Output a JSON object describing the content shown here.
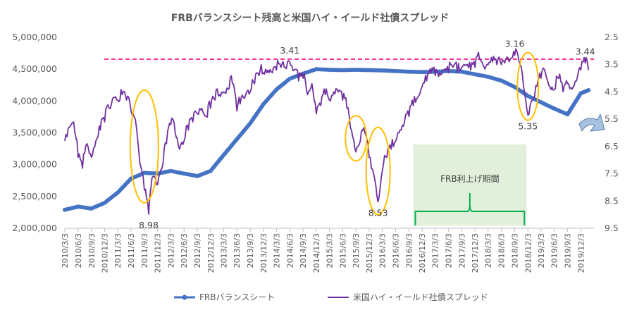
{
  "chart_data": {
    "type": "line",
    "title": "FRBバランスシート残高と米国ハイ・イールド社債スプレッド",
    "x_ticks": [
      "2010/3/3",
      "2010/6/3",
      "2010/9/3",
      "2010/12/3",
      "2011/3/3",
      "2011/6/3",
      "2011/9/3",
      "2011/12/3",
      "2012/3/3",
      "2012/6/3",
      "2012/9/3",
      "2012/12/3",
      "2013/3/3",
      "2013/6/3",
      "2013/9/3",
      "2013/12/3",
      "2014/3/3",
      "2014/6/3",
      "2014/9/3",
      "2014/12/3",
      "2015/3/3",
      "2015/6/3",
      "2015/9/3",
      "2015/12/3",
      "2016/3/3",
      "2016/6/3",
      "2016/9/3",
      "2016/12/3",
      "2017/3/3",
      "2017/6/3",
      "2017/9/3",
      "2017/12/3",
      "2018/3/3",
      "2018/6/3",
      "2018/9/3",
      "2018/12/3",
      "2019/3/3",
      "2019/6/3",
      "2019/9/3",
      "2019/12/3"
    ],
    "y_left": {
      "ticks": [
        "2,000,000",
        "2,500,000",
        "3,000,000",
        "3,500,000",
        "4,000,000",
        "4,500,000",
        "5,000,000"
      ],
      "min": 2000000,
      "max": 5000000
    },
    "y_right": {
      "ticks": [
        "2.5",
        "3.5",
        "4.5",
        "5.5",
        "6.5",
        "7.5",
        "8.5",
        "9.5"
      ],
      "min": 2.5,
      "max": 9.5,
      "inverted": true
    },
    "series": [
      {
        "name": "FRBバランスシート",
        "axis": "left",
        "color": "#4472C4",
        "points": [
          [
            "2010/3/3",
            2290000
          ],
          [
            "2010/6/3",
            2340000
          ],
          [
            "2010/9/3",
            2310000
          ],
          [
            "2010/12/3",
            2400000
          ],
          [
            "2011/3/3",
            2560000
          ],
          [
            "2011/6/3",
            2780000
          ],
          [
            "2011/9/3",
            2870000
          ],
          [
            "2011/12/3",
            2860000
          ],
          [
            "2012/3/3",
            2900000
          ],
          [
            "2012/6/3",
            2860000
          ],
          [
            "2012/9/3",
            2820000
          ],
          [
            "2012/12/3",
            2900000
          ],
          [
            "2013/3/3",
            3150000
          ],
          [
            "2013/6/3",
            3400000
          ],
          [
            "2013/9/3",
            3650000
          ],
          [
            "2013/12/3",
            3950000
          ],
          [
            "2014/3/3",
            4180000
          ],
          [
            "2014/6/3",
            4350000
          ],
          [
            "2014/9/3",
            4430000
          ],
          [
            "2014/12/3",
            4500000
          ],
          [
            "2015/3/3",
            4490000
          ],
          [
            "2015/6/3",
            4485000
          ],
          [
            "2015/9/3",
            4490000
          ],
          [
            "2015/12/3",
            4485000
          ],
          [
            "2016/3/3",
            4480000
          ],
          [
            "2016/6/3",
            4470000
          ],
          [
            "2016/9/3",
            4460000
          ],
          [
            "2016/12/3",
            4455000
          ],
          [
            "2017/3/3",
            4460000
          ],
          [
            "2017/6/3",
            4470000
          ],
          [
            "2017/9/3",
            4460000
          ],
          [
            "2017/12/3",
            4420000
          ],
          [
            "2018/3/3",
            4380000
          ],
          [
            "2018/6/3",
            4320000
          ],
          [
            "2018/9/3",
            4220000
          ],
          [
            "2018/12/3",
            4080000
          ],
          [
            "2019/3/3",
            3980000
          ],
          [
            "2019/6/3",
            3880000
          ],
          [
            "2019/9/3",
            3790000
          ],
          [
            "2019/12/3",
            4120000
          ],
          [
            "2020/1/25",
            4170000
          ]
        ]
      },
      {
        "name": "米国ハイ・イールド社債スプレッド",
        "axis": "right",
        "color": "#7030A0",
        "points": [
          [
            "2010/3/3",
            6.3
          ],
          [
            "2010/4/3",
            5.8
          ],
          [
            "2010/5/3",
            5.6
          ],
          [
            "2010/6/3",
            6.9
          ],
          [
            "2010/7/3",
            7.3
          ],
          [
            "2010/8/3",
            6.4
          ],
          [
            "2010/9/3",
            6.9
          ],
          [
            "2010/10/3",
            6.3
          ],
          [
            "2010/11/3",
            5.9
          ],
          [
            "2010/12/3",
            5.6
          ],
          [
            "2011/1/3",
            5.1
          ],
          [
            "2011/2/3",
            4.7
          ],
          [
            "2011/3/3",
            4.8
          ],
          [
            "2011/4/3",
            4.6
          ],
          [
            "2011/5/3",
            4.8
          ],
          [
            "2011/6/3",
            5.2
          ],
          [
            "2011/7/3",
            5.5
          ],
          [
            "2011/8/3",
            7.1
          ],
          [
            "2011/9/3",
            8.1
          ],
          [
            "2011/10/3",
            8.98
          ],
          [
            "2011/11/3",
            7.6
          ],
          [
            "2011/12/3",
            7.9
          ],
          [
            "2012/1/3",
            7.3
          ],
          [
            "2012/2/3",
            6.4
          ],
          [
            "2012/3/3",
            5.7
          ],
          [
            "2012/4/3",
            6.0
          ],
          [
            "2012/5/3",
            6.6
          ],
          [
            "2012/6/3",
            6.3
          ],
          [
            "2012/7/3",
            5.9
          ],
          [
            "2012/8/3",
            5.6
          ],
          [
            "2012/9/3",
            5.3
          ],
          [
            "2012/10/3",
            5.1
          ],
          [
            "2012/11/3",
            5.4
          ],
          [
            "2012/12/3",
            5.1
          ],
          [
            "2013/1/3",
            4.8
          ],
          [
            "2013/2/3",
            4.6
          ],
          [
            "2013/3/3",
            4.5
          ],
          [
            "2013/4/3",
            4.4
          ],
          [
            "2013/5/3",
            4.2
          ],
          [
            "2013/6/3",
            5.2
          ],
          [
            "2013/7/3",
            4.7
          ],
          [
            "2013/8/3",
            4.6
          ],
          [
            "2013/9/3",
            4.5
          ],
          [
            "2013/10/3",
            4.2
          ],
          [
            "2013/11/3",
            3.9
          ],
          [
            "2013/12/3",
            3.8
          ],
          [
            "2014/1/3",
            3.7
          ],
          [
            "2014/2/3",
            3.8
          ],
          [
            "2014/3/3",
            3.7
          ],
          [
            "2014/4/3",
            3.6
          ],
          [
            "2014/5/3",
            3.6
          ],
          [
            "2014/6/3",
            3.41
          ],
          [
            "2014/7/3",
            3.7
          ],
          [
            "2014/8/3",
            4.1
          ],
          [
            "2014/9/3",
            4.0
          ],
          [
            "2014/10/3",
            4.6
          ],
          [
            "2014/11/3",
            4.2
          ],
          [
            "2014/12/3",
            5.3
          ],
          [
            "2015/1/3",
            5.0
          ],
          [
            "2015/2/3",
            4.6
          ],
          [
            "2015/3/3",
            4.8
          ],
          [
            "2015/4/3",
            4.5
          ],
          [
            "2015/5/3",
            4.5
          ],
          [
            "2015/6/3",
            4.8
          ],
          [
            "2015/7/3",
            5.1
          ],
          [
            "2015/8/3",
            5.9
          ],
          [
            "2015/9/3",
            6.7
          ],
          [
            "2015/10/3",
            6.3
          ],
          [
            "2015/11/3",
            6.0
          ],
          [
            "2015/12/3",
            6.9
          ],
          [
            "2016/1/3",
            7.5
          ],
          [
            "2016/2/3",
            8.53
          ],
          [
            "2016/3/3",
            7.4
          ],
          [
            "2016/4/3",
            6.9
          ],
          [
            "2016/5/3",
            6.6
          ],
          [
            "2016/6/3",
            6.3
          ],
          [
            "2016/7/3",
            5.9
          ],
          [
            "2016/8/3",
            5.6
          ],
          [
            "2016/9/3",
            5.4
          ],
          [
            "2016/10/3",
            5.0
          ],
          [
            "2016/11/3",
            4.7
          ],
          [
            "2016/12/3",
            4.3
          ],
          [
            "2017/1/3",
            4.1
          ],
          [
            "2017/2/3",
            3.8
          ],
          [
            "2017/3/3",
            3.9
          ],
          [
            "2017/4/3",
            3.8
          ],
          [
            "2017/5/3",
            3.7
          ],
          [
            "2017/6/3",
            3.8
          ],
          [
            "2017/7/3",
            3.6
          ],
          [
            "2017/8/3",
            3.8
          ],
          [
            "2017/9/3",
            3.6
          ],
          [
            "2017/10/3",
            3.5
          ],
          [
            "2017/11/3",
            3.7
          ],
          [
            "2017/12/3",
            3.6
          ],
          [
            "2018/1/3",
            3.3
          ],
          [
            "2018/2/3",
            3.6
          ],
          [
            "2018/3/3",
            3.5
          ],
          [
            "2018/4/3",
            3.4
          ],
          [
            "2018/5/3",
            3.5
          ],
          [
            "2018/6/3",
            3.5
          ],
          [
            "2018/7/3",
            3.3
          ],
          [
            "2018/8/3",
            3.3
          ],
          [
            "2018/9/3",
            3.16
          ],
          [
            "2018/10/3",
            3.4
          ],
          [
            "2018/11/3",
            4.3
          ],
          [
            "2018/12/3",
            5.35
          ],
          [
            "2019/1/3",
            4.8
          ],
          [
            "2019/2/3",
            4.3
          ],
          [
            "2019/3/3",
            4.0
          ],
          [
            "2019/4/3",
            3.8
          ],
          [
            "2019/5/3",
            4.3
          ],
          [
            "2019/6/3",
            4.4
          ],
          [
            "2019/7/3",
            4.0
          ],
          [
            "2019/8/3",
            4.5
          ],
          [
            "2019/9/3",
            4.2
          ],
          [
            "2019/10/3",
            4.4
          ],
          [
            "2019/11/3",
            4.1
          ],
          [
            "2019/12/3",
            3.7
          ],
          [
            "2020/1/3",
            3.44
          ],
          [
            "2020/1/25",
            3.7
          ]
        ]
      }
    ],
    "annotations": [
      {
        "text": "3.41",
        "x": "2014/6/3",
        "y": 3.41
      },
      {
        "text": "8.98",
        "x": "2011/10/3",
        "y": 8.98
      },
      {
        "text": "8.53",
        "x": "2016/2/3",
        "y": 8.53
      },
      {
        "text": "3.16",
        "x": "2018/9/3",
        "y": 3.16
      },
      {
        "text": "5.35",
        "x": "2018/12/3",
        "y": 5.35
      },
      {
        "text": "3.44",
        "x": "2020/1/3",
        "y": 3.44
      }
    ],
    "reference_line": {
      "axis": "right",
      "value": 3.3,
      "color": "#FF3399",
      "style": "dashed"
    },
    "shaded_period": {
      "label": "FRB利上げ期間",
      "start": "2016/9/3",
      "end": "2018/12/3",
      "color": "#E2EFDA",
      "brace_color": "#00B050"
    },
    "highlights": [
      {
        "center": "2011/9/3",
        "y_center": 6.5,
        "color": "#FFC000"
      },
      {
        "center": "2015/9/3",
        "y_center": 6.2,
        "color": "#FFC000"
      },
      {
        "center": "2016/2/3",
        "y_center": 7.4,
        "color": "#FFC000"
      },
      {
        "center": "2018/12/3",
        "y_center": 4.3,
        "color": "#FFC000"
      }
    ],
    "arrow_icon": "curved-arrow-icon",
    "legend": {
      "position": "bottom"
    },
    "grid": false
  }
}
